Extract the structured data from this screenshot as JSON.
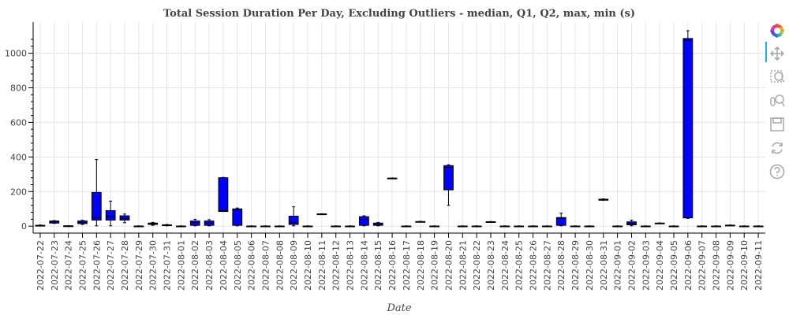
{
  "chart_data": {
    "type": "box",
    "title": "Total Session Duration Per Day, Excluding Outliers - median, Q1, Q2, max, min (s)",
    "xlabel": "Date",
    "ylabel": "",
    "ylim": [
      -40,
      1180
    ],
    "yticks": [
      0,
      200,
      400,
      600,
      800,
      1000
    ],
    "grid": true,
    "box_color": "#0000ff",
    "categories": [
      "2022-07-22",
      "2022-07-23",
      "2022-07-24",
      "2022-07-25",
      "2022-07-26",
      "2022-07-27",
      "2022-07-28",
      "2022-07-29",
      "2022-07-30",
      "2022-07-31",
      "2022-08-01",
      "2022-08-02",
      "2022-08-03",
      "2022-08-04",
      "2022-08-05",
      "2022-08-06",
      "2022-08-07",
      "2022-08-08",
      "2022-08-09",
      "2022-08-10",
      "2022-08-11",
      "2022-08-12",
      "2022-08-13",
      "2022-08-14",
      "2022-08-15",
      "2022-08-16",
      "2022-08-17",
      "2022-08-18",
      "2022-08-19",
      "2022-08-20",
      "2022-08-21",
      "2022-08-22",
      "2022-08-23",
      "2022-08-24",
      "2022-08-25",
      "2022-08-26",
      "2022-08-27",
      "2022-08-28",
      "2022-08-29",
      "2022-08-30",
      "2022-08-31",
      "2022-09-01",
      "2022-09-02",
      "2022-09-03",
      "2022-09-04",
      "2022-09-05",
      "2022-09-06",
      "2022-09-07",
      "2022-09-08",
      "2022-09-09",
      "2022-09-10",
      "2022-09-11"
    ],
    "boxes": [
      {
        "min": 2,
        "q1": 3,
        "median": 4,
        "q3": 5,
        "max": 7
      },
      {
        "min": 16,
        "q1": 18,
        "median": 25,
        "q3": 30,
        "max": 32
      },
      {
        "min": 1,
        "q1": 1,
        "median": 2,
        "q3": 2,
        "max": 3
      },
      {
        "min": 10,
        "q1": 15,
        "median": 22,
        "q3": 30,
        "max": 34
      },
      {
        "min": 2,
        "q1": 35,
        "median": 50,
        "q3": 195,
        "max": 385
      },
      {
        "min": 2,
        "q1": 35,
        "median": 55,
        "q3": 90,
        "max": 145
      },
      {
        "min": 20,
        "q1": 35,
        "median": 45,
        "q3": 60,
        "max": 70
      },
      {
        "min": 0,
        "q1": 0,
        "median": 1,
        "q3": 1,
        "max": 2
      },
      {
        "min": 5,
        "q1": 10,
        "median": 14,
        "q3": 18,
        "max": 22
      },
      {
        "min": 2,
        "q1": 4,
        "median": 6,
        "q3": 8,
        "max": 10
      },
      {
        "min": 0,
        "q1": 0,
        "median": 1,
        "q3": 1,
        "max": 2
      },
      {
        "min": 2,
        "q1": 5,
        "median": 20,
        "q3": 30,
        "max": 40
      },
      {
        "min": 2,
        "q1": 5,
        "median": 18,
        "q3": 30,
        "max": 38
      },
      {
        "min": 85,
        "q1": 85,
        "median": 90,
        "q3": 280,
        "max": 282
      },
      {
        "min": 2,
        "q1": 5,
        "median": 95,
        "q3": 100,
        "max": 105
      },
      {
        "min": 0,
        "q1": 0,
        "median": 1,
        "q3": 1,
        "max": 2
      },
      {
        "min": 0,
        "q1": 0,
        "median": 1,
        "q3": 1,
        "max": 2
      },
      {
        "min": 0,
        "q1": 0,
        "median": 1,
        "q3": 1,
        "max": 2
      },
      {
        "min": 2,
        "q1": 10,
        "median": 20,
        "q3": 58,
        "max": 112
      },
      {
        "min": 0,
        "q1": 0,
        "median": 1,
        "q3": 1,
        "max": 2
      },
      {
        "min": 68,
        "q1": 69,
        "median": 70,
        "q3": 71,
        "max": 72
      },
      {
        "min": 0,
        "q1": 0,
        "median": 1,
        "q3": 1,
        "max": 2
      },
      {
        "min": 0,
        "q1": 0,
        "median": 1,
        "q3": 1,
        "max": 2
      },
      {
        "min": 2,
        "q1": 5,
        "median": 40,
        "q3": 55,
        "max": 60
      },
      {
        "min": 2,
        "q1": 5,
        "median": 10,
        "q3": 18,
        "max": 22
      },
      {
        "min": 275,
        "q1": 276,
        "median": 277,
        "q3": 278,
        "max": 279
      },
      {
        "min": 0,
        "q1": 0,
        "median": 1,
        "q3": 1,
        "max": 2
      },
      {
        "min": 24,
        "q1": 25,
        "median": 26,
        "q3": 27,
        "max": 28
      },
      {
        "min": 0,
        "q1": 0,
        "median": 1,
        "q3": 1,
        "max": 2
      },
      {
        "min": 120,
        "q1": 210,
        "median": 340,
        "q3": 350,
        "max": 355
      },
      {
        "min": 0,
        "q1": 0,
        "median": 1,
        "q3": 1,
        "max": 2
      },
      {
        "min": 0,
        "q1": 0,
        "median": 1,
        "q3": 1,
        "max": 2
      },
      {
        "min": 23,
        "q1": 24,
        "median": 25,
        "q3": 26,
        "max": 27
      },
      {
        "min": 0,
        "q1": 0,
        "median": 1,
        "q3": 1,
        "max": 2
      },
      {
        "min": 0,
        "q1": 0,
        "median": 1,
        "q3": 1,
        "max": 2
      },
      {
        "min": 0,
        "q1": 0,
        "median": 1,
        "q3": 1,
        "max": 2
      },
      {
        "min": 0,
        "q1": 0,
        "median": 1,
        "q3": 1,
        "max": 2
      },
      {
        "min": 2,
        "q1": 5,
        "median": 45,
        "q3": 50,
        "max": 75
      },
      {
        "min": 0,
        "q1": 0,
        "median": 1,
        "q3": 1,
        "max": 2
      },
      {
        "min": 0,
        "q1": 0,
        "median": 1,
        "q3": 1,
        "max": 2
      },
      {
        "min": 150,
        "q1": 150,
        "median": 152,
        "q3": 156,
        "max": 158
      },
      {
        "min": 0,
        "q1": 0,
        "median": 1,
        "q3": 1,
        "max": 2
      },
      {
        "min": 2,
        "q1": 8,
        "median": 15,
        "q3": 25,
        "max": 35
      },
      {
        "min": 0,
        "q1": 0,
        "median": 1,
        "q3": 1,
        "max": 2
      },
      {
        "min": 15,
        "q1": 16,
        "median": 17,
        "q3": 18,
        "max": 19
      },
      {
        "min": 0,
        "q1": 0,
        "median": 1,
        "q3": 1,
        "max": 2
      },
      {
        "min": 45,
        "q1": 48,
        "median": 1075,
        "q3": 1085,
        "max": 1130
      },
      {
        "min": 0,
        "q1": 0,
        "median": 1,
        "q3": 1,
        "max": 2
      },
      {
        "min": 0,
        "q1": 0,
        "median": 1,
        "q3": 1,
        "max": 2
      },
      {
        "min": 3,
        "q1": 4,
        "median": 5,
        "q3": 6,
        "max": 7
      },
      {
        "min": 0,
        "q1": 0,
        "median": 1,
        "q3": 1,
        "max": 2
      },
      {
        "min": 0,
        "q1": 0,
        "median": 1,
        "q3": 1,
        "max": 2
      }
    ]
  },
  "toolbar": {
    "active_color": "#26aae1",
    "tools": [
      {
        "name": "bokeh-logo",
        "icon": "bokeh-logo-icon"
      },
      {
        "name": "pan",
        "icon": "pan-icon"
      },
      {
        "name": "box-zoom",
        "icon": "box-zoom-icon"
      },
      {
        "name": "wheel-zoom",
        "icon": "wheel-zoom-icon"
      },
      {
        "name": "save",
        "icon": "save-icon"
      },
      {
        "name": "reset",
        "icon": "reset-icon"
      },
      {
        "name": "help",
        "icon": "help-icon"
      }
    ]
  }
}
